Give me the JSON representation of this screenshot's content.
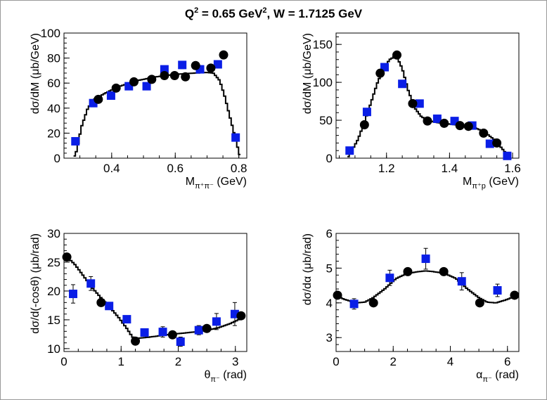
{
  "figure": {
    "title_parts": [
      "Q",
      "2",
      " =  0.65 GeV",
      "2",
      ", W = 1.7125 GeV"
    ]
  },
  "colors": {
    "sim_marker": "#0a1ee6",
    "data_marker": "#000000",
    "line": "#000000",
    "frame": "#999999"
  },
  "chart_data": [
    {
      "id": "mpipi",
      "type": "scatter",
      "xlabel_parts": [
        "M",
        "π⁺π⁻",
        " (GeV)"
      ],
      "ylabel": "dσ/dM (μb/GeV)",
      "xlim": [
        0.25,
        0.825
      ],
      "ylim": [
        0,
        100
      ],
      "xticks": [
        0.4,
        0.6,
        0.8
      ],
      "xtick_labels": [
        "0.4",
        "0.6",
        "0.8"
      ],
      "yticks": [
        0,
        20,
        40,
        60,
        80,
        100
      ],
      "ytick_labels": [
        "0",
        "20",
        "40",
        "60",
        "80",
        "100"
      ],
      "series": [
        {
          "marker": "square",
          "points": [
            [
              0.286,
              13.5,
              0
            ],
            [
              0.342,
              44,
              2
            ],
            [
              0.398,
              50,
              2
            ],
            [
              0.454,
              57.5,
              2
            ],
            [
              0.51,
              57.5,
              2
            ],
            [
              0.566,
              71,
              2
            ],
            [
              0.622,
              74.5,
              3
            ],
            [
              0.678,
              71,
              3
            ],
            [
              0.734,
              75,
              3
            ],
            [
              0.79,
              16.5,
              0
            ]
          ]
        },
        {
          "marker": "circle",
          "points": [
            [
              0.358,
              47
            ],
            [
              0.414,
              56
            ],
            [
              0.47,
              61
            ],
            [
              0.526,
              63
            ],
            [
              0.566,
              66
            ],
            [
              0.598,
              66
            ],
            [
              0.632,
              65
            ],
            [
              0.664,
              74
            ],
            [
              0.712,
              72
            ],
            [
              0.752,
              82.5
            ]
          ]
        }
      ],
      "curve": [
        [
          0.28,
          0
        ],
        [
          0.29,
          6
        ],
        [
          0.305,
          25
        ],
        [
          0.325,
          40
        ],
        [
          0.345,
          47
        ],
        [
          0.38,
          52
        ],
        [
          0.42,
          57
        ],
        [
          0.48,
          62
        ],
        [
          0.54,
          65
        ],
        [
          0.6,
          67
        ],
        [
          0.66,
          68
        ],
        [
          0.7,
          68.5
        ],
        [
          0.72,
          68
        ],
        [
          0.74,
          62
        ],
        [
          0.755,
          50
        ],
        [
          0.77,
          35
        ],
        [
          0.785,
          20
        ],
        [
          0.795,
          10
        ],
        [
          0.805,
          0
        ]
      ]
    },
    {
      "id": "mpip",
      "type": "scatter",
      "xlabel_parts": [
        "M",
        "π⁺p",
        " (GeV)"
      ],
      "ylabel": "dσ/dM (μb/GeV)",
      "xlim": [
        1.04,
        1.62
      ],
      "ylim": [
        0,
        165
      ],
      "xticks": [
        1.2,
        1.4,
        1.6
      ],
      "xtick_labels": [
        "1.2",
        "1.4",
        "1.6"
      ],
      "yticks": [
        0,
        50,
        100,
        150
      ],
      "ytick_labels": [
        "0",
        "50",
        "100",
        "150"
      ],
      "series": [
        {
          "marker": "square",
          "points": [
            [
              1.083,
              10,
              0
            ],
            [
              1.138,
              61,
              3
            ],
            [
              1.194,
              120,
              4
            ],
            [
              1.25,
              98,
              3
            ],
            [
              1.305,
              72,
              3
            ],
            [
              1.361,
              52,
              3
            ],
            [
              1.416,
              49,
              3
            ],
            [
              1.472,
              43,
              3
            ],
            [
              1.528,
              19,
              0
            ],
            [
              1.583,
              3,
              0
            ]
          ]
        },
        {
          "marker": "circle",
          "points": [
            [
              1.13,
              44
            ],
            [
              1.18,
              112
            ],
            [
              1.233,
              136
            ],
            [
              1.283,
              72
            ],
            [
              1.33,
              49
            ],
            [
              1.383,
              46
            ],
            [
              1.433,
              43
            ],
            [
              1.46,
              42
            ],
            [
              1.508,
              33
            ],
            [
              1.55,
              20
            ]
          ]
        }
      ],
      "curve": [
        [
          1.076,
          0
        ],
        [
          1.09,
          10
        ],
        [
          1.11,
          25
        ],
        [
          1.13,
          48
        ],
        [
          1.15,
          72
        ],
        [
          1.17,
          98
        ],
        [
          1.19,
          118
        ],
        [
          1.21,
          130
        ],
        [
          1.225,
          134
        ],
        [
          1.235,
          132
        ],
        [
          1.25,
          118
        ],
        [
          1.27,
          88
        ],
        [
          1.29,
          66
        ],
        [
          1.31,
          55
        ],
        [
          1.33,
          50
        ],
        [
          1.36,
          47
        ],
        [
          1.4,
          45
        ],
        [
          1.44,
          43
        ],
        [
          1.48,
          40
        ],
        [
          1.51,
          35
        ],
        [
          1.54,
          25
        ],
        [
          1.56,
          16
        ],
        [
          1.58,
          6
        ],
        [
          1.595,
          0
        ]
      ]
    },
    {
      "id": "theta",
      "type": "scatter",
      "xlabel_parts": [
        "θ",
        "π⁻",
        " (rad)"
      ],
      "ylabel": "dσ/d(-cosθ) (μb/rad)",
      "xlim": [
        0,
        3.2
      ],
      "ylim": [
        9.5,
        30
      ],
      "xticks": [
        0,
        1,
        2,
        3
      ],
      "xtick_labels": [
        "0",
        "1",
        "2",
        "3"
      ],
      "yticks": [
        10,
        15,
        20,
        25,
        30
      ],
      "ytick_labels": [
        "10",
        "15",
        "20",
        "25",
        "30"
      ],
      "series": [
        {
          "marker": "square",
          "points": [
            [
              0.16,
              19.5,
              1.6
            ],
            [
              0.47,
              21.3,
              1.2
            ],
            [
              0.79,
              17.4,
              0.5
            ],
            [
              1.1,
              15.1,
              0.5
            ],
            [
              1.41,
              12.8,
              0.5
            ],
            [
              1.73,
              12.9,
              0.9
            ],
            [
              2.04,
              11.2,
              0.8
            ],
            [
              2.36,
              13.2,
              0.8
            ],
            [
              2.67,
              14.7,
              1.4
            ],
            [
              2.99,
              16.0,
              2.0
            ]
          ]
        },
        {
          "marker": "circle",
          "points": [
            [
              0.05,
              25.9
            ],
            [
              0.65,
              18.0
            ],
            [
              1.25,
              11.3
            ],
            [
              1.9,
              12.4
            ],
            [
              2.5,
              13.5
            ],
            [
              3.1,
              15.7
            ]
          ]
        }
      ],
      "curve": [
        [
          0.0,
          26.0
        ],
        [
          0.1,
          25.5
        ],
        [
          0.2,
          24.5
        ],
        [
          0.35,
          22.5
        ],
        [
          0.5,
          20.5
        ],
        [
          0.65,
          18.8
        ],
        [
          0.8,
          17.2
        ],
        [
          0.95,
          15.5
        ],
        [
          1.1,
          13.5
        ],
        [
          1.2,
          12.0
        ],
        [
          1.3,
          11.8
        ],
        [
          1.5,
          12.0
        ],
        [
          1.8,
          12.4
        ],
        [
          2.1,
          12.7
        ],
        [
          2.4,
          13.0
        ],
        [
          2.7,
          13.6
        ],
        [
          2.9,
          14.3
        ],
        [
          3.05,
          15.0
        ],
        [
          3.14,
          15.5
        ]
      ]
    },
    {
      "id": "alpha",
      "type": "scatter",
      "xlabel_parts": [
        "α",
        "π⁻",
        " (rad)"
      ],
      "ylabel": "dσ/dα (μb/rad)",
      "xlim": [
        0,
        6.4
      ],
      "ylim": [
        2.6,
        6
      ],
      "xticks": [
        0,
        2,
        4,
        6
      ],
      "xtick_labels": [
        "0",
        "2",
        "4",
        "6"
      ],
      "yticks": [
        3,
        4,
        5,
        6
      ],
      "ytick_labels": [
        "3",
        "4",
        "5",
        "6"
      ],
      "series": [
        {
          "marker": "square",
          "points": [
            [
              0.63,
              3.97,
              0.15
            ],
            [
              1.88,
              4.72,
              0.22
            ],
            [
              3.14,
              5.27,
              0.3
            ],
            [
              4.4,
              4.62,
              0.25
            ],
            [
              5.65,
              4.36,
              0.18
            ]
          ]
        },
        {
          "marker": "circle",
          "points": [
            [
              0.05,
              4.22
            ],
            [
              1.31,
              4.0
            ],
            [
              2.51,
              4.9
            ],
            [
              3.77,
              4.9
            ],
            [
              5.03,
              4.0
            ],
            [
              6.25,
              4.22
            ]
          ]
        }
      ],
      "curve": [
        [
          0.0,
          4.2
        ],
        [
          0.3,
          4.1
        ],
        [
          0.7,
          4.0
        ],
        [
          1.0,
          4.02
        ],
        [
          1.3,
          4.15
        ],
        [
          1.7,
          4.4
        ],
        [
          2.1,
          4.7
        ],
        [
          2.5,
          4.85
        ],
        [
          2.9,
          4.9
        ],
        [
          3.14,
          4.92
        ],
        [
          3.4,
          4.9
        ],
        [
          3.8,
          4.85
        ],
        [
          4.2,
          4.7
        ],
        [
          4.6,
          4.4
        ],
        [
          5.0,
          4.15
        ],
        [
          5.3,
          4.02
        ],
        [
          5.6,
          4.0
        ],
        [
          6.0,
          4.1
        ],
        [
          6.28,
          4.2
        ]
      ]
    }
  ]
}
